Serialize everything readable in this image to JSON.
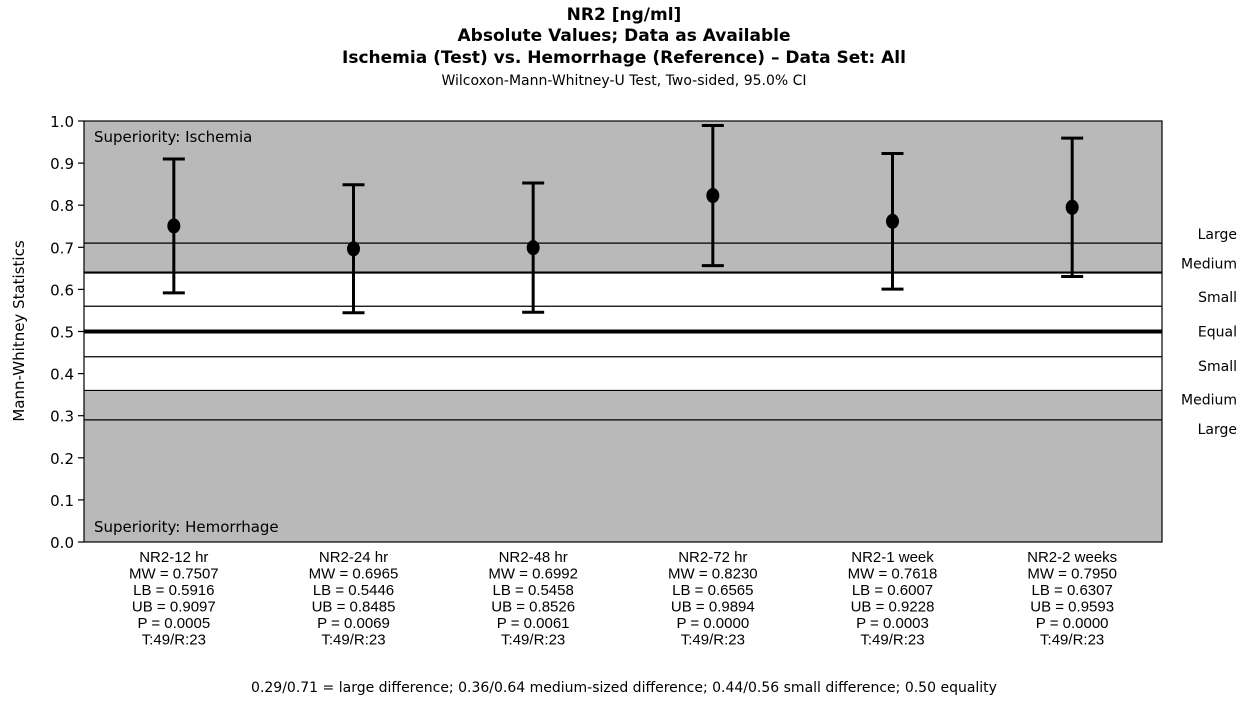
{
  "chart_data": {
    "type": "scatter",
    "title": "NR2 [ng/ml]",
    "title_line2": "Absolute Values; Data as Available",
    "title_line3": "Ischemia (Test) vs. Hemorrhage (Reference) – Data Set: All",
    "subtitle": "Wilcoxon-Mann-Whitney-U Test, Two-sided, 95.0% CI",
    "ylabel": "Mann-Whitney Statistics",
    "xlabel": "",
    "ylim": [
      0.0,
      1.0
    ],
    "yticks": [
      "0.0",
      "0.1",
      "0.2",
      "0.3",
      "0.4",
      "0.5",
      "0.6",
      "0.7",
      "0.8",
      "0.9",
      "1.0"
    ],
    "grid": false,
    "region_top_label": "Superiority: Ischemia",
    "region_bottom_label": "Superiority: Hemorrhage",
    "shaded_regions": [
      {
        "from": 0.64,
        "to": 1.0
      },
      {
        "from": 0.0,
        "to": 0.36
      }
    ],
    "shade_color": "#b9b9b9",
    "reference_lines": [
      {
        "value": 0.71,
        "label": "Large",
        "weight": "thin"
      },
      {
        "value": 0.64,
        "label": "Medium",
        "weight": "medium"
      },
      {
        "value": 0.56,
        "label": "Small",
        "weight": "thin"
      },
      {
        "value": 0.5,
        "label": "Equal",
        "weight": "thick"
      },
      {
        "value": 0.44,
        "label": "Small",
        "weight": "thin"
      },
      {
        "value": 0.36,
        "label": "Medium",
        "weight": "thin"
      },
      {
        "value": 0.29,
        "label": "Large",
        "weight": "thin"
      }
    ],
    "categories": [
      "NR2-12 hr",
      "NR2-24 hr",
      "NR2-48 hr",
      "NR2-72 hr",
      "NR2-1 week",
      "NR2-2 weeks"
    ],
    "points": [
      {
        "mw": 0.7507,
        "lb": 0.5916,
        "ub": 0.9097,
        "p": "0.0005",
        "n": "T:49/R:23"
      },
      {
        "mw": 0.6965,
        "lb": 0.5446,
        "ub": 0.8485,
        "p": "0.0069",
        "n": "T:49/R:23"
      },
      {
        "mw": 0.6992,
        "lb": 0.5458,
        "ub": 0.8526,
        "p": "0.0061",
        "n": "T:49/R:23"
      },
      {
        "mw": 0.823,
        "lb": 0.6565,
        "ub": 0.9894,
        "p": "0.0000",
        "n": "T:49/R:23"
      },
      {
        "mw": 0.7618,
        "lb": 0.6007,
        "ub": 0.9228,
        "p": "0.0003",
        "n": "T:49/R:23"
      },
      {
        "mw": 0.795,
        "lb": 0.6307,
        "ub": 0.9593,
        "p": "0.0000",
        "n": "T:49/R:23"
      }
    ],
    "category_stat_lines": [
      [
        "MW = 0.7507",
        "LB = 0.5916",
        "UB = 0.9097",
        "P = 0.0005",
        "T:49/R:23"
      ],
      [
        "MW = 0.6965",
        "LB = 0.5446",
        "UB = 0.8485",
        "P = 0.0069",
        "T:49/R:23"
      ],
      [
        "MW = 0.6992",
        "LB = 0.5458",
        "UB = 0.8526",
        "P = 0.0061",
        "T:49/R:23"
      ],
      [
        "MW = 0.8230",
        "LB = 0.6565",
        "UB = 0.9894",
        "P = 0.0000",
        "T:49/R:23"
      ],
      [
        "MW = 0.7618",
        "LB = 0.6007",
        "UB = 0.9228",
        "P = 0.0003",
        "T:49/R:23"
      ],
      [
        "MW = 0.7950",
        "LB = 0.6307",
        "UB = 0.9593",
        "P = 0.0000",
        "T:49/R:23"
      ]
    ],
    "footnote": "0.29/0.71 = large difference; 0.36/0.64 medium-sized difference; 0.44/0.56 small difference; 0.50 equality"
  }
}
